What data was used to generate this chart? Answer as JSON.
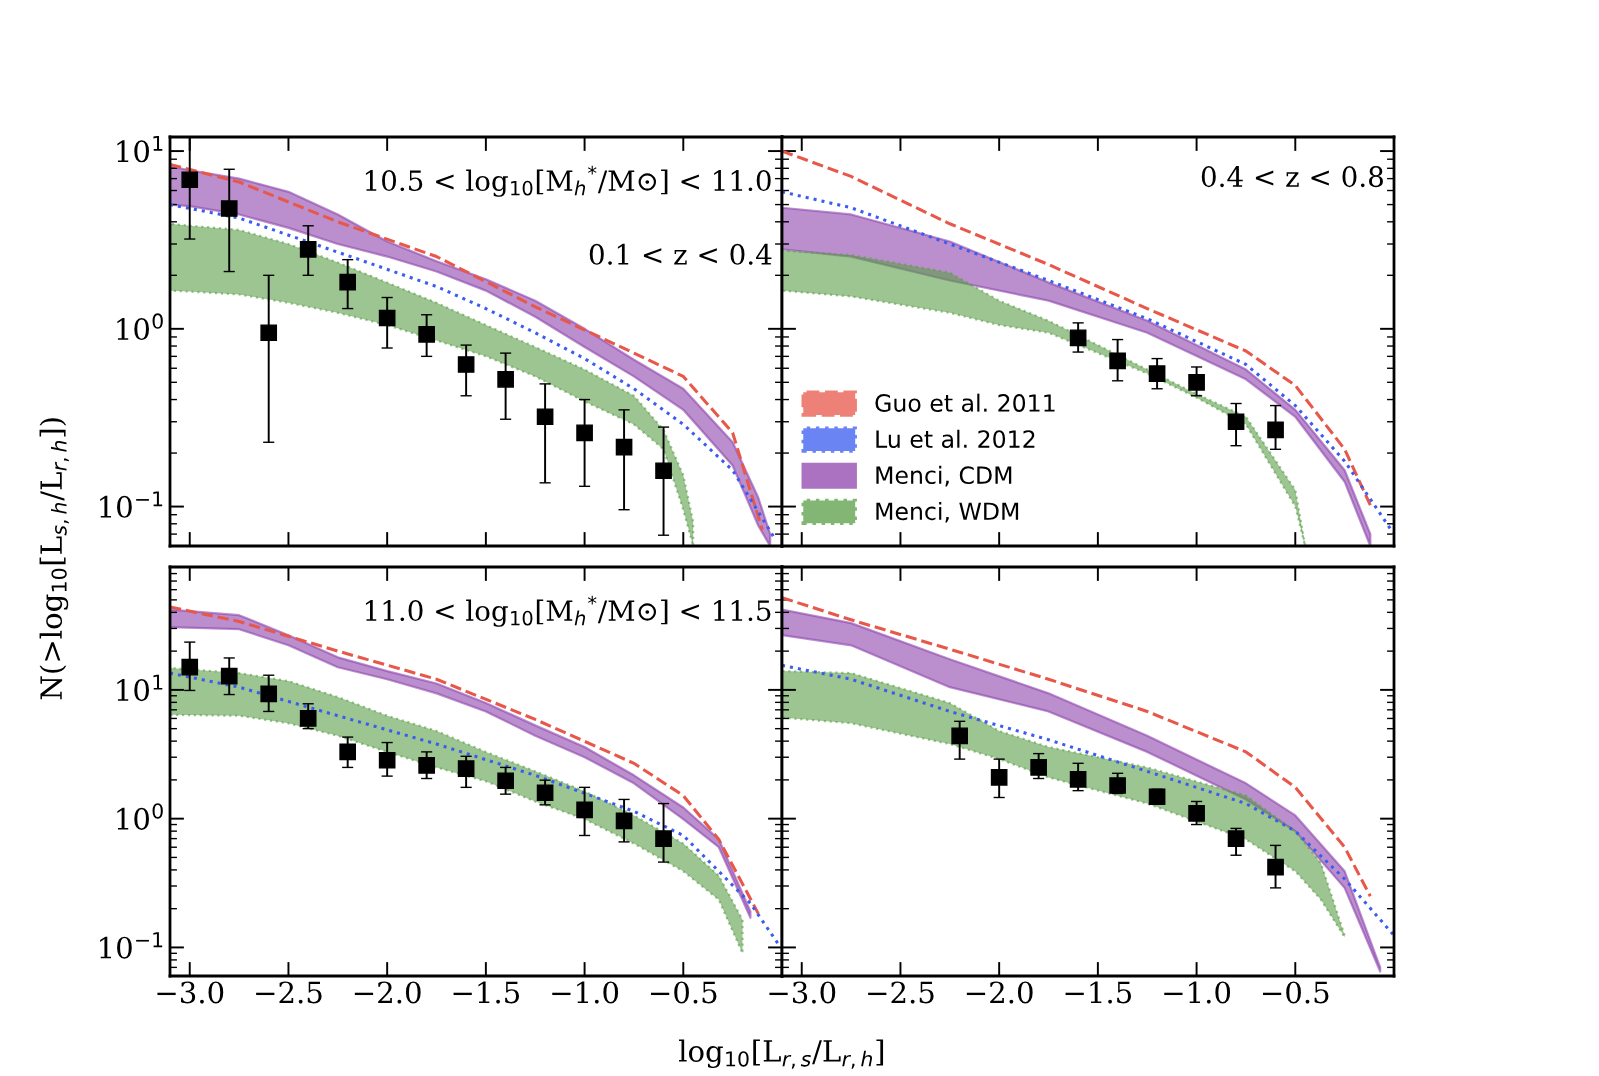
{
  "chart_data": [
    {
      "type": "line",
      "log": "y",
      "xlim": [
        -3.1,
        0.0
      ],
      "ylim": [
        0.06,
        12
      ],
      "tick_labels": "y",
      "xticks": [
        {
          "value": -3.0,
          "label": null
        },
        {
          "value": -2.5,
          "label": null
        },
        {
          "value": -2.0,
          "label": null
        },
        {
          "value": -1.5,
          "label": null
        },
        {
          "value": -1.0,
          "label": null
        },
        {
          "value": -0.5,
          "label": null
        }
      ],
      "yticks": [
        {
          "value": 0.1,
          "label": "10$^{−1}$"
        },
        {
          "value": 1,
          "label": "10$^{0}$"
        },
        {
          "value": 10,
          "label": "10$^{1}$"
        }
      ],
      "ylabel": "N(>log$_{10}$[L$_{s,h}$/L$_{r,h}$])",
      "annotations": [
        "10.5 < log$_{10}$[M$_{h}$$^{*}$/M⊙] < 11.0",
        "0.1 < z < 0.4"
      ],
      "series": [
        {
          "type": "area",
          "color": "#8e44ad",
          "x": [
            -3.1,
            -3.0,
            -2.75,
            -2.5,
            -2.25,
            -2.0,
            -1.75,
            -1.5,
            -1.25,
            -1.0,
            -0.75,
            -0.5,
            -0.25,
            -0.12,
            -0.06
          ],
          "values": [
            null,
            null,
            null,
            null,
            null,
            null,
            null,
            null,
            null,
            null,
            null,
            null,
            null,
            null,
            null
          ],
          "upper": [
            8.2,
            7.8,
            7.0,
            5.9,
            4.4,
            3.1,
            2.4,
            1.9,
            1.44,
            1.0,
            0.67,
            0.46,
            0.23,
            0.112,
            0.07
          ],
          "lower": [
            5.0,
            4.9,
            4.4,
            3.7,
            3.0,
            2.55,
            2.1,
            1.64,
            1.17,
            0.79,
            0.54,
            0.35,
            0.17,
            0.078,
            0.06
          ]
        },
        {
          "type": "area",
          "color": "#5a9e48",
          "line_style": "dotted",
          "x": [
            -3.1,
            -3.0,
            -2.75,
            -2.5,
            -2.25,
            -2.0,
            -1.75,
            -1.5,
            -1.25,
            -1.0,
            -0.75,
            -0.6,
            -0.5,
            -0.45
          ],
          "values": [
            null,
            null,
            null,
            null,
            null,
            null,
            null,
            null,
            null,
            null,
            null,
            null,
            null,
            null
          ],
          "upper": [
            3.9,
            3.8,
            3.6,
            3.0,
            2.36,
            1.82,
            1.4,
            1.05,
            0.79,
            0.59,
            0.42,
            0.27,
            0.15,
            0.082
          ],
          "lower": [
            1.64,
            1.62,
            1.56,
            1.4,
            1.23,
            1.05,
            0.86,
            0.7,
            0.54,
            0.39,
            0.29,
            0.21,
            0.096,
            0.06
          ]
        },
        {
          "color": "#e8584a",
          "line_style": "dashed",
          "x": [
            -3.1,
            -2.75,
            -2.25,
            -1.75,
            -1.25,
            -0.75,
            -0.5,
            -0.25,
            -0.1
          ],
          "values": [
            8.4,
            6.7,
            4.0,
            2.55,
            1.33,
            0.73,
            0.54,
            0.26,
            0.074
          ]
        },
        {
          "color": "#3a5cf0",
          "line_style": "dotted",
          "x": [
            -3.1,
            -2.75,
            -2.25,
            -1.75,
            -1.5,
            -1.25,
            -1.0,
            -0.75,
            -0.5,
            -0.25,
            -0.04
          ],
          "values": [
            5.0,
            4.2,
            2.7,
            1.73,
            1.3,
            0.95,
            0.68,
            0.46,
            0.29,
            0.16,
            0.067
          ]
        },
        {
          "type": "scatter",
          "color": "#000000",
          "marker": "square",
          "x": [
            -3.0,
            -2.8,
            -2.6,
            -2.4,
            -2.2,
            -2.0,
            -1.8,
            -1.6,
            -1.4,
            -1.2,
            -1.0,
            -0.8,
            -0.6
          ],
          "values": [
            6.9,
            4.75,
            0.95,
            2.8,
            1.83,
            1.15,
            0.93,
            0.63,
            0.52,
            0.32,
            0.26,
            0.216,
            0.159
          ],
          "errors": [
            [
              3.2,
              12
            ],
            [
              2.1,
              7.9
            ],
            [
              0.23,
              2.0
            ],
            [
              2.0,
              3.8
            ],
            [
              1.3,
              2.45
            ],
            [
              0.78,
              1.5
            ],
            [
              0.7,
              1.2
            ],
            [
              0.42,
              0.81
            ],
            [
              0.31,
              0.73
            ],
            [
              0.136,
              0.49
            ],
            [
              0.13,
              0.4
            ],
            [
              0.096,
              0.35
            ],
            [
              0.069,
              0.28
            ]
          ]
        }
      ]
    },
    {
      "type": "line",
      "log": "y",
      "xlim": [
        -3.1,
        0.0
      ],
      "ylim": [
        0.06,
        12
      ],
      "tick_labels": false,
      "legend": "bottom left",
      "xticks": [
        {
          "value": -3.0,
          "label": null
        },
        {
          "value": -2.5,
          "label": null
        },
        {
          "value": -2.0,
          "label": null
        },
        {
          "value": -1.5,
          "label": null
        },
        {
          "value": -1.0,
          "label": null
        },
        {
          "value": -0.5,
          "label": null
        }
      ],
      "yticks": [
        {
          "value": 0.1,
          "label": null
        },
        {
          "value": 1,
          "label": null
        },
        {
          "value": 10,
          "label": null
        }
      ],
      "annotations": [
        "0.4 < z < 0.8"
      ],
      "series": [
        {
          "name": "Guo et al. 2011",
          "color": "#e8584a",
          "line_style": "dashed",
          "x": [
            -3.1,
            -2.75,
            -2.25,
            -1.75,
            -1.25,
            -0.75,
            -0.5,
            -0.25,
            -0.12
          ],
          "values": [
            10,
            7.2,
            3.9,
            2.3,
            1.3,
            0.75,
            0.48,
            0.21,
            0.102
          ]
        },
        {
          "name": "Lu et al. 2012",
          "color": "#3a5cf0",
          "line_style": "dotted",
          "x": [
            -3.1,
            -2.75,
            -2.25,
            -1.75,
            -1.25,
            -0.75,
            -0.5,
            -0.25,
            0.0
          ],
          "values": [
            5.9,
            4.8,
            3.0,
            1.87,
            1.14,
            0.63,
            0.37,
            0.18,
            0.07
          ]
        },
        {
          "name": "Menci, CDM",
          "type": "area",
          "color": "#8e44ad",
          "x": [
            -3.1,
            -2.75,
            -2.25,
            -1.75,
            -1.25,
            -0.75,
            -0.5,
            -0.25,
            -0.12
          ],
          "values": [
            null,
            null,
            null,
            null,
            null,
            null,
            null,
            null,
            null
          ],
          "upper": [
            4.8,
            4.4,
            3.1,
            1.82,
            1.11,
            0.59,
            0.35,
            0.16,
            0.07
          ],
          "lower": [
            2.8,
            2.55,
            1.87,
            1.44,
            0.95,
            0.52,
            0.32,
            0.138,
            0.06
          ]
        },
        {
          "name": "Menci, WDM",
          "type": "area",
          "color": "#5a9e48",
          "line_style": "dotted",
          "x": [
            -3.1,
            -2.75,
            -2.25,
            -2.0,
            -1.75,
            -1.5,
            -1.25,
            -1.0,
            -0.75,
            -0.5,
            -0.45
          ],
          "values": [
            null,
            null,
            null,
            null,
            null,
            null,
            null,
            null,
            null,
            null,
            null
          ],
          "upper": [
            2.76,
            2.6,
            2.07,
            1.44,
            1.11,
            0.81,
            0.59,
            0.43,
            0.32,
            0.124,
            0.06
          ],
          "lower": [
            1.64,
            1.52,
            1.23,
            1.05,
            0.95,
            0.73,
            0.56,
            0.41,
            0.29,
            0.1,
            0.06
          ]
        },
        {
          "type": "scatter",
          "color": "#000000",
          "marker": "square",
          "x": [
            -1.6,
            -1.4,
            -1.2,
            -1.0,
            -0.8,
            -0.6
          ],
          "values": [
            0.89,
            0.66,
            0.56,
            0.5,
            0.3,
            0.27
          ],
          "errors": [
            [
              0.74,
              1.08
            ],
            [
              0.51,
              0.87
            ],
            [
              0.46,
              0.68
            ],
            [
              0.42,
              0.61
            ],
            [
              0.22,
              0.38
            ],
            [
              0.21,
              0.37
            ]
          ]
        }
      ]
    },
    {
      "type": "line",
      "log": "y",
      "xlim": [
        -3.1,
        0.0
      ],
      "ylim": [
        0.06,
        90
      ],
      "xticks": [
        {
          "value": -3.0,
          "label": "−3.0"
        },
        {
          "value": -2.5,
          "label": "−2.5"
        },
        {
          "value": -2.0,
          "label": "−2.0"
        },
        {
          "value": -1.5,
          "label": "−1.5"
        },
        {
          "value": -1.0,
          "label": "−1.0"
        },
        {
          "value": -0.5,
          "label": "−0.5"
        }
      ],
      "yticks": [
        {
          "value": 0.1,
          "label": "10$^{−1}$"
        },
        {
          "value": 1,
          "label": "10$^{0}$"
        },
        {
          "value": 10,
          "label": "10$^{1}$"
        }
      ],
      "xlabel": "log$_{10}$[L$_{r,s}$/L$_{r,h}$]",
      "annotations": [
        "11.0 < log$_{10}$[M$_{h}$$^{*}$/M⊙] < 11.5"
      ],
      "series": [
        {
          "type": "area",
          "color": "#8e44ad",
          "x": [
            -3.1,
            -2.75,
            -2.5,
            -2.25,
            -2.0,
            -1.75,
            -1.5,
            -1.25,
            -1.0,
            -0.75,
            -0.5,
            -0.32,
            -0.16
          ],
          "values": [
            null,
            null,
            null,
            null,
            null,
            null,
            null,
            null,
            null,
            null,
            null,
            null,
            null
          ],
          "upper": [
            42,
            38,
            26.6,
            17.9,
            14,
            11.2,
            7.9,
            5.3,
            3.6,
            2.17,
            1.22,
            0.69,
            0.19
          ],
          "lower": [
            30.7,
            29.6,
            22.2,
            15,
            12.1,
            9.4,
            6.8,
            4.4,
            3.0,
            1.88,
            0.99,
            0.6,
            0.17
          ]
        },
        {
          "type": "area",
          "color": "#5a9e48",
          "line_style": "dotted",
          "x": [
            -3.1,
            -2.75,
            -2.5,
            -2.25,
            -2.0,
            -1.75,
            -1.5,
            -1.25,
            -1.0,
            -0.75,
            -0.5,
            -0.32,
            -0.2
          ],
          "values": [
            null,
            null,
            null,
            null,
            null,
            null,
            null,
            null,
            null,
            null,
            null,
            null,
            null
          ],
          "upper": [
            14.8,
            13.5,
            11.7,
            8.8,
            6.3,
            4.8,
            3.3,
            2.33,
            1.63,
            1.06,
            0.64,
            0.36,
            0.164
          ],
          "lower": [
            6.4,
            6.3,
            5.5,
            4.4,
            3.3,
            2.5,
            1.95,
            1.36,
            0.99,
            0.64,
            0.39,
            0.235,
            0.09
          ]
        },
        {
          "color": "#e8584a",
          "line_style": "dashed",
          "x": [
            -3.1,
            -2.75,
            -2.25,
            -1.75,
            -1.25,
            -0.75,
            -0.5,
            -0.32,
            -0.12
          ],
          "values": [
            44,
            34,
            20,
            12.1,
            5.9,
            2.69,
            1.51,
            0.69,
            0.183
          ]
        },
        {
          "color": "#3a5cf0",
          "line_style": "dotted",
          "x": [
            -3.1,
            -2.75,
            -2.25,
            -1.75,
            -1.25,
            -0.75,
            -0.5,
            -0.32,
            -0.16,
            -0.02
          ],
          "values": [
            13.5,
            10.5,
            6.3,
            3.8,
            2.17,
            1.14,
            0.74,
            0.39,
            0.22,
            0.107
          ]
        },
        {
          "type": "scatter",
          "color": "#000000",
          "marker": "square",
          "x": [
            -3.0,
            -2.8,
            -2.6,
            -2.4,
            -2.2,
            -2.0,
            -1.8,
            -1.6,
            -1.4,
            -1.2,
            -1.0,
            -0.8,
            -0.6
          ],
          "values": [
            15.0,
            12.8,
            9.3,
            6.0,
            3.3,
            2.84,
            2.59,
            2.45,
            1.97,
            1.59,
            1.17,
            0.96,
            0.7
          ],
          "errors": [
            [
              9.9,
              23.5
            ],
            [
              9.2,
              17.7
            ],
            [
              6.8,
              13.0
            ],
            [
              5.0,
              7.8
            ],
            [
              2.5,
              4.3
            ],
            [
              2.14,
              3.9
            ],
            [
              2.05,
              3.3
            ],
            [
              1.75,
              3.05
            ],
            [
              1.55,
              2.5
            ],
            [
              1.28,
              1.99
            ],
            [
              0.74,
              1.75
            ],
            [
              0.66,
              1.41
            ],
            [
              0.46,
              1.31
            ]
          ]
        }
      ]
    },
    {
      "type": "line",
      "log": "y",
      "xlim": [
        -3.1,
        0.0
      ],
      "ylim": [
        0.06,
        90
      ],
      "tick_labels": "x",
      "xticks": [
        {
          "value": -3.0,
          "label": "−3.0"
        },
        {
          "value": -2.5,
          "label": "−2.5"
        },
        {
          "value": -2.0,
          "label": "−2.0"
        },
        {
          "value": -1.5,
          "label": "−1.5"
        },
        {
          "value": -1.0,
          "label": "−1.0"
        },
        {
          "value": -0.5,
          "label": "−0.5"
        }
      ],
      "yticks": [
        {
          "value": 0.1,
          "label": null
        },
        {
          "value": 1,
          "label": null
        },
        {
          "value": 10,
          "label": null
        }
      ],
      "series": [
        {
          "type": "area",
          "color": "#8e44ad",
          "x": [
            -3.1,
            -2.75,
            -2.25,
            -1.75,
            -1.25,
            -0.75,
            -0.5,
            -0.25,
            -0.07
          ],
          "values": [
            null,
            null,
            null,
            null,
            null,
            null,
            null,
            null,
            null
          ],
          "upper": [
            42,
            33,
            17.3,
            9.4,
            4.4,
            1.88,
            1.06,
            0.39,
            0.07
          ],
          "lower": [
            26.6,
            22.2,
            10.5,
            6.8,
            3.3,
            1.41,
            0.8,
            0.29,
            0.065
          ]
        },
        {
          "type": "area",
          "color": "#5a9e48",
          "line_style": "dotted",
          "x": [
            -3.1,
            -2.75,
            -2.25,
            -2.0,
            -1.75,
            -1.25,
            -0.75,
            -0.5,
            -0.37,
            -0.25
          ],
          "values": [
            null,
            null,
            null,
            null,
            null,
            null,
            null,
            null,
            null,
            null
          ],
          "upper": [
            14,
            13.5,
            7.9,
            4.8,
            3.6,
            2.5,
            1.51,
            0.8,
            0.45,
            0.124
          ],
          "lower": [
            6.1,
            5.5,
            3.8,
            2.9,
            2.09,
            1.31,
            0.69,
            0.39,
            0.235,
            0.12
          ]
        },
        {
          "color": "#e8584a",
          "line_style": "dashed",
          "x": [
            -3.1,
            -2.75,
            -2.25,
            -1.75,
            -1.25,
            -0.75,
            -0.5,
            -0.25,
            -0.12
          ],
          "values": [
            52,
            35,
            20.7,
            12.1,
            6.8,
            3.3,
            1.75,
            0.6,
            0.25
          ]
        },
        {
          "color": "#3a5cf0",
          "line_style": "dotted",
          "x": [
            -3.1,
            -2.75,
            -2.25,
            -1.75,
            -1.25,
            -0.75,
            -0.5,
            -0.25,
            0.0
          ],
          "values": [
            15.5,
            12.1,
            6.8,
            4.1,
            2.33,
            1.31,
            0.8,
            0.34,
            0.124
          ]
        },
        {
          "type": "scatter",
          "color": "#000000",
          "marker": "square",
          "x": [
            -2.2,
            -2.0,
            -1.8,
            -1.6,
            -1.4,
            -1.2,
            -1.0,
            -0.8,
            -0.6
          ],
          "values": [
            4.4,
            2.09,
            2.5,
            2.02,
            1.81,
            1.48,
            1.1,
            0.7,
            0.42
          ],
          "errors": [
            [
              2.9,
              5.7
            ],
            [
              1.46,
              2.9
            ],
            [
              2.05,
              3.2
            ],
            [
              1.65,
              2.69
            ],
            [
              1.57,
              2.25
            ],
            [
              1.31,
              1.69
            ],
            [
              0.9,
              1.36
            ],
            [
              0.52,
              0.84
            ],
            [
              0.29,
              0.62
            ]
          ]
        }
      ]
    }
  ]
}
